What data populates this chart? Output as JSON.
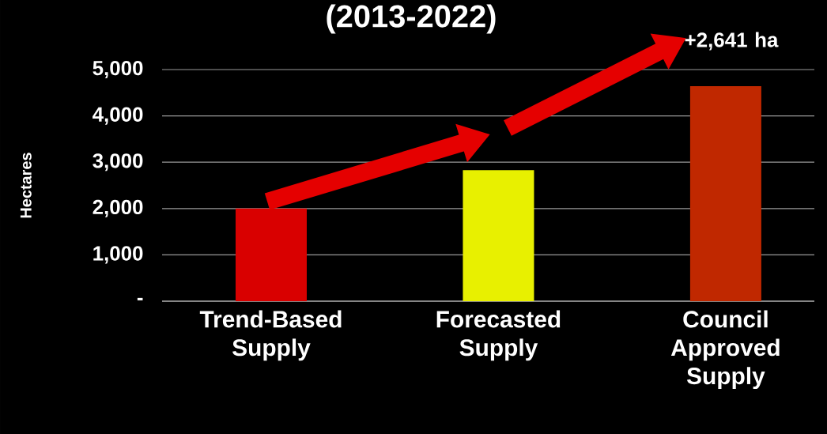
{
  "chart_data": {
    "type": "bar",
    "title": "(2013-2022)",
    "ylabel": "Hectares",
    "categories": [
      "Trend-Based Supply",
      "Forecasted Supply",
      "Council Approved Supply"
    ],
    "values": [
      2000,
      2830,
      4640
    ],
    "colors": [
      "#d90000",
      "#e8f000",
      "#c02800"
    ],
    "ylim": [
      0,
      5000
    ],
    "yticks": [
      {
        "value": 0,
        "label": "-"
      },
      {
        "value": 1000,
        "label": "1,000"
      },
      {
        "value": 2000,
        "label": "2,000"
      },
      {
        "value": 3000,
        "label": "3,000"
      },
      {
        "value": 4000,
        "label": "4,000"
      },
      {
        "value": 5000,
        "label": "5,000"
      }
    ],
    "grid": "y",
    "annotations": [
      "+2,641 ha"
    ]
  }
}
